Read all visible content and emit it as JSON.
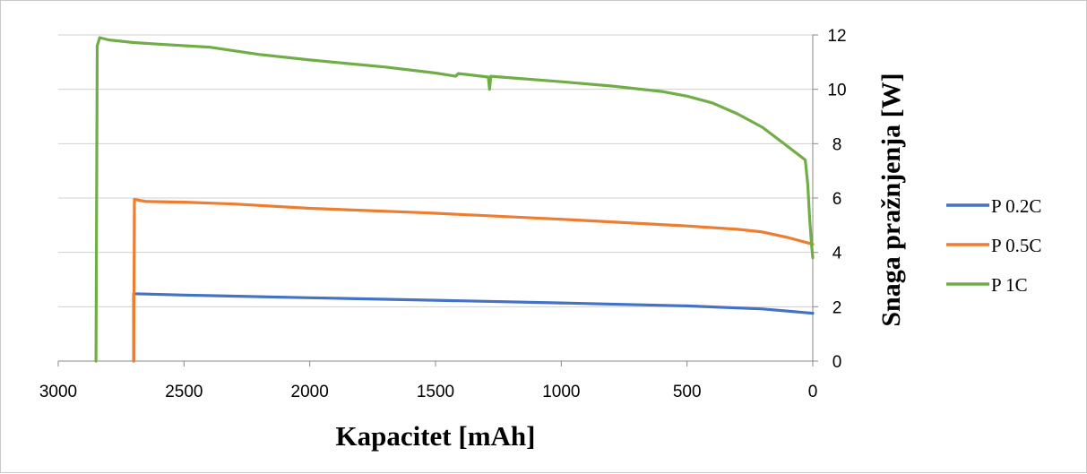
{
  "chart_data": {
    "type": "line",
    "xlabel": "Kapacitet [mAh]",
    "ylabel": "Snaga pražnjenja [W]",
    "xlim": [
      3000,
      0
    ],
    "ylim": [
      0,
      12
    ],
    "x_ticks": [
      "3000",
      "2500",
      "2000",
      "1500",
      "1000",
      "500",
      "0"
    ],
    "y_ticks": [
      "0",
      "2",
      "4",
      "6",
      "8",
      "10",
      "12"
    ],
    "grid": "horizontal",
    "legend": "right",
    "y_axis_side": "right",
    "series": [
      {
        "name": "P 0.2C",
        "color": "#4472C4",
        "points": [
          [
            2700,
            0
          ],
          [
            2700,
            2.48
          ],
          [
            2500,
            2.43
          ],
          [
            2000,
            2.33
          ],
          [
            1500,
            2.24
          ],
          [
            1000,
            2.14
          ],
          [
            500,
            2.03
          ],
          [
            200,
            1.92
          ],
          [
            0,
            1.76
          ]
        ]
      },
      {
        "name": "P 0.5C",
        "color": "#ED7D31",
        "points": [
          [
            2700,
            0
          ],
          [
            2697,
            5.95
          ],
          [
            2650,
            5.87
          ],
          [
            2500,
            5.85
          ],
          [
            2300,
            5.78
          ],
          [
            2000,
            5.62
          ],
          [
            1520,
            5.45
          ],
          [
            1500,
            5.44
          ],
          [
            1000,
            5.22
          ],
          [
            500,
            4.97
          ],
          [
            300,
            4.85
          ],
          [
            200,
            4.75
          ],
          [
            100,
            4.55
          ],
          [
            0,
            4.3
          ]
        ]
      },
      {
        "name": "P 1C",
        "color": "#70AD47",
        "points": [
          [
            2850,
            0
          ],
          [
            2845,
            11.6
          ],
          [
            2835,
            11.9
          ],
          [
            2800,
            11.82
          ],
          [
            2700,
            11.72
          ],
          [
            2600,
            11.66
          ],
          [
            2400,
            11.55
          ],
          [
            2200,
            11.28
          ],
          [
            2000,
            11.08
          ],
          [
            1700,
            10.82
          ],
          [
            1500,
            10.6
          ],
          [
            1420,
            10.48
          ],
          [
            1410,
            10.58
          ],
          [
            1380,
            10.55
          ],
          [
            1290,
            10.45
          ],
          [
            1285,
            10.0
          ],
          [
            1280,
            10.48
          ],
          [
            1000,
            10.28
          ],
          [
            800,
            10.12
          ],
          [
            600,
            9.92
          ],
          [
            500,
            9.75
          ],
          [
            400,
            9.5
          ],
          [
            300,
            9.1
          ],
          [
            200,
            8.6
          ],
          [
            100,
            7.9
          ],
          [
            30,
            7.4
          ],
          [
            20,
            6.5
          ],
          [
            12,
            5.2
          ],
          [
            5,
            4.3
          ],
          [
            0,
            3.8
          ]
        ]
      }
    ]
  }
}
